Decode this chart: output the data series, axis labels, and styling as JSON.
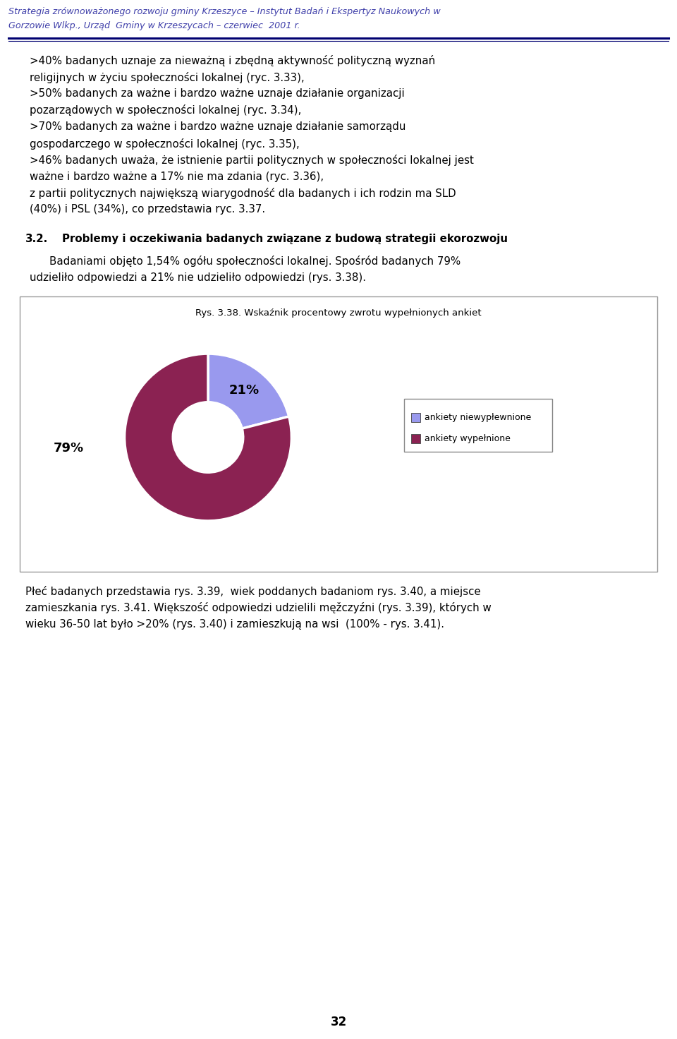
{
  "title_line1": "Strategia zrównoważonego rozwoju gminy Krzeszyce – Instytut Badań i Ekspertyz Naukowych w",
  "title_line2": "Gorzowie Wlkp., Urząd  Gminy w Krzeszycach – czerwiec  2001 r.",
  "header_color": "#4040aa",
  "header_line_color_thick": "#000060",
  "header_line_color_thin": "#000060",
  "body_paragraphs": [
    [
      ">40% badanych uznaje za nieważną i zbędną aktywność polityczną wyznań",
      "religijnych w życiu społeczności lokalnej (ryc. 3.33),"
    ],
    [
      ">50% badanych za ważne i bardzo ważne uznaje działanie organizacji",
      "pozarządowych w społeczności lokalnej (ryc. 3.34),"
    ],
    [
      ">70% badanych za ważne i bardzo ważne uznaje działanie samorządu",
      "gospodarczego w społeczności lokalnej (ryc. 3.35),"
    ],
    [
      ">46% badanych uważa, że istnienie partii politycznych w społeczności lokalnej jest",
      "ważne i bardzo ważne a 17% nie ma zdania (ryc. 3.36),"
    ],
    [
      "z partii politycznych największą wiarygodność dla badanych i ich rodzin ma SLD",
      "(40%) i PSL (34%), co przedstawia ryc. 3.37."
    ]
  ],
  "section_num": "3.2.",
  "section_title": "Problemy i oczekiwania badanych związane z budową strategii ekorozwoju",
  "section_body_line1": "Badaniami objęto 1,54% ogółu społeczności lokalnej. Spośród badanych 79%",
  "section_body_line2": "udzieliło odpowiedzi a 21% nie udzieliło odpowiedzi (rys. 3.38).",
  "chart_title": "Rys. 3.38. Wskaźnik procentowy zwrotu wypełnionych ankiet",
  "pie_values": [
    21,
    79
  ],
  "pie_colors": [
    "#9999ee",
    "#8b2252"
  ],
  "legend_label1": "ankiety niewypłewnione",
  "legend_label2": "ankiety wypełnione",
  "label_21": "21%",
  "label_79": "79%",
  "bottom_line1": "Płeć badanych przedstawia rys. 3.39,  wiek poddanych badaniom rys. 3.40, a miejsce",
  "bottom_line2": "zamieszkania rys. 3.41. Większość odpowiedzi udzielili męžczyźni (rys. 3.39), których w",
  "bottom_line3": "wieku 36-50 lat było >20% (rys. 3.40) i zamieszkują na wsi  (100% - rys. 3.41).",
  "page_number": "32",
  "background_color": "#ffffff",
  "text_color": "#000000"
}
